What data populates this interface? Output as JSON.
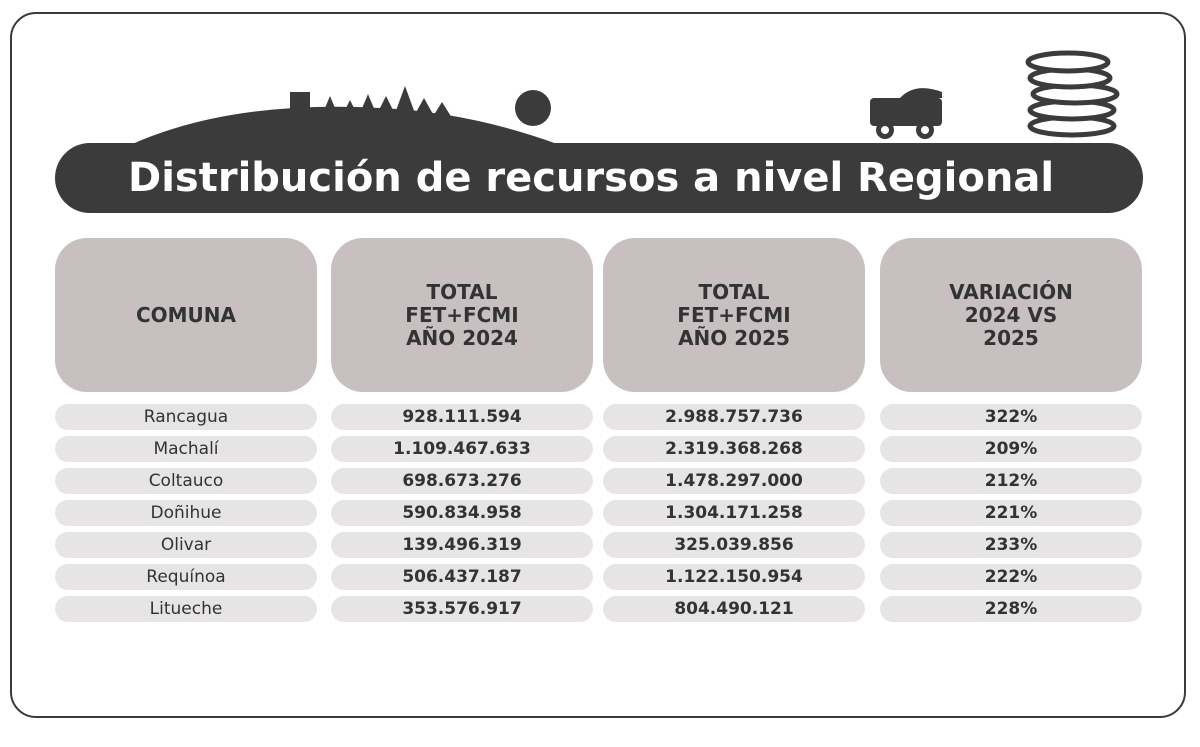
{
  "header": {
    "title": "Distribución de recursos a nivel Regional"
  },
  "table": {
    "columns": [
      [
        "COMUNA"
      ],
      [
        "TOTAL",
        "FET+FCMI",
        "AÑO 2024"
      ],
      [
        "TOTAL",
        "FET+FCMI",
        "AÑO 2025"
      ],
      [
        "VARIACIÓN",
        "2024 VS",
        "2025"
      ]
    ],
    "rows": [
      [
        "Rancagua",
        "928.111.594",
        "2.988.757.736",
        "322%"
      ],
      [
        "Machalí",
        "1.109.467.633",
        "2.319.368.268",
        "209%"
      ],
      [
        "Coltauco",
        "698.673.276",
        "1.478.297.000",
        "212%"
      ],
      [
        "Doñihue",
        "590.834.958",
        "1.304.171.258",
        "221%"
      ],
      [
        "Olivar",
        "139.496.319",
        "325.039.856",
        "233%"
      ],
      [
        "Requínoa",
        "506.437.187",
        "1.122.150.954",
        "222%"
      ],
      [
        "Litueche",
        "353.576.917",
        "804.490.121",
        "228%"
      ]
    ]
  }
}
